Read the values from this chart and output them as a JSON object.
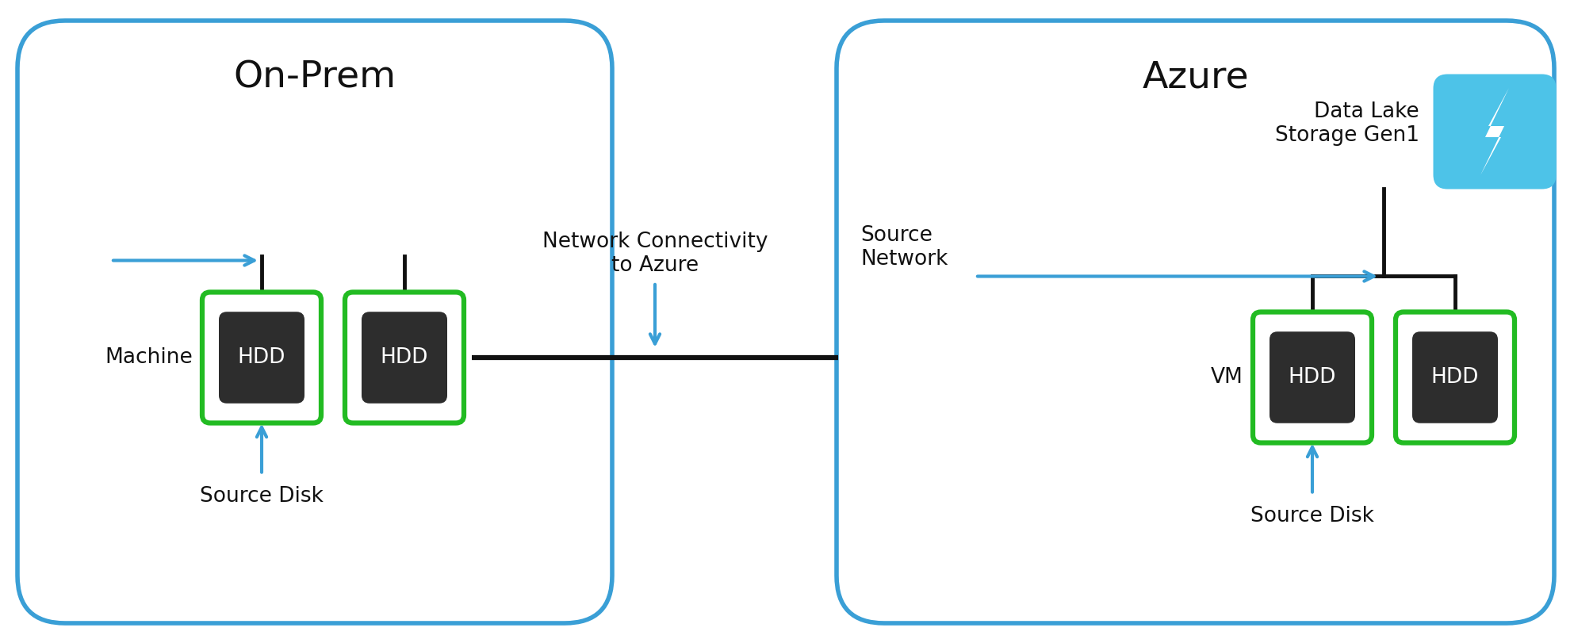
{
  "bg_color": "#ffffff",
  "border_color": "#3a9fd6",
  "green_border": "#22bb22",
  "dark_box": "#2d2d2d",
  "blue_arrow": "#3a9fd6",
  "black_line": "#111111",
  "text_color": "#111111",
  "azure_icon_bg": "#4dc3e8",
  "on_prem_title": "On-Prem",
  "azure_title": "Azure",
  "machine_label": "Machine",
  "source_disk_label_left": "Source Disk",
  "source_disk_label_right": "Source Disk",
  "vm_label": "VM",
  "source_network_label": "Source\nNetwork",
  "network_connectivity_label": "Network Connectivity\nto Azure",
  "data_lake_label": "Data Lake\nStorage Gen1",
  "hdd_text": "HDD",
  "title_fontsize": 34,
  "label_fontsize": 19,
  "hdd_fontsize": 19
}
